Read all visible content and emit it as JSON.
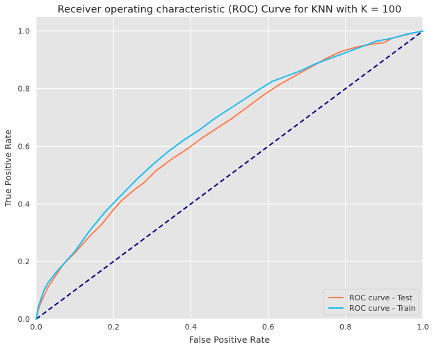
{
  "chart_data": {
    "type": "line",
    "title": "Receiver operating characteristic (ROC) Curve for KNN with K = 100",
    "xlabel": "False Positive Rate",
    "ylabel": "True Positive Rate",
    "xlim": [
      0,
      1
    ],
    "ylim": [
      0,
      1.05
    ],
    "xticks": [
      "0.0",
      "0.2",
      "0.4",
      "0.6",
      "0.8",
      "1.0"
    ],
    "yticks": [
      "0.0",
      "0.2",
      "0.4",
      "0.6",
      "0.8",
      "1.0"
    ],
    "grid": true,
    "legend_position": "lower-right",
    "series": [
      {
        "name": "ROC curve - Test",
        "color": "#ff7f50",
        "style": "solid",
        "x": [
          0,
          0.005,
          0.01,
          0.02,
          0.03,
          0.05,
          0.07,
          0.1,
          0.14,
          0.17,
          0.2,
          0.22,
          0.25,
          0.28,
          0.31,
          0.35,
          0.39,
          0.43,
          0.47,
          0.51,
          0.55,
          0.59,
          0.63,
          0.67,
          0.71,
          0.75,
          0.79,
          0.83,
          0.87,
          0.9,
          0.92,
          0.95,
          0.98,
          1.0
        ],
        "y": [
          0,
          0.03,
          0.05,
          0.08,
          0.11,
          0.15,
          0.19,
          0.23,
          0.29,
          0.33,
          0.38,
          0.41,
          0.445,
          0.475,
          0.515,
          0.555,
          0.59,
          0.63,
          0.665,
          0.7,
          0.74,
          0.78,
          0.815,
          0.845,
          0.875,
          0.905,
          0.93,
          0.945,
          0.955,
          0.96,
          0.975,
          0.985,
          0.995,
          1.0
        ]
      },
      {
        "name": "ROC curve - Train",
        "color": "#1cbdf0",
        "style": "solid",
        "x": [
          0,
          0.005,
          0.01,
          0.02,
          0.03,
          0.05,
          0.07,
          0.1,
          0.14,
          0.18,
          0.22,
          0.26,
          0.3,
          0.34,
          0.38,
          0.42,
          0.46,
          0.5,
          0.54,
          0.58,
          0.61,
          0.64,
          0.68,
          0.72,
          0.76,
          0.8,
          0.84,
          0.88,
          0.92,
          0.96,
          1.0
        ],
        "y": [
          0,
          0.04,
          0.06,
          0.1,
          0.125,
          0.16,
          0.19,
          0.235,
          0.31,
          0.375,
          0.43,
          0.485,
          0.535,
          0.58,
          0.62,
          0.655,
          0.695,
          0.73,
          0.765,
          0.8,
          0.825,
          0.84,
          0.86,
          0.885,
          0.905,
          0.925,
          0.945,
          0.965,
          0.975,
          0.99,
          1.0
        ]
      },
      {
        "name": "",
        "color": "#000080",
        "style": "dashed",
        "x": [
          0,
          1
        ],
        "y": [
          0,
          1
        ]
      }
    ]
  }
}
